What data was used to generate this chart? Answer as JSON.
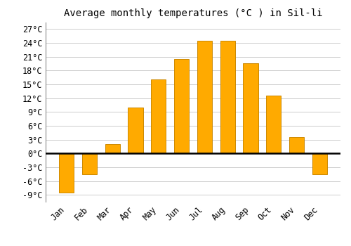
{
  "title": "Average monthly temperatures (°C ) in Sil-li",
  "months": [
    "Jan",
    "Feb",
    "Mar",
    "Apr",
    "May",
    "Jun",
    "Jul",
    "Aug",
    "Sep",
    "Oct",
    "Nov",
    "Dec"
  ],
  "temperatures": [
    -8.5,
    -4.5,
    2.0,
    10.0,
    16.0,
    20.5,
    24.5,
    24.5,
    19.5,
    12.5,
    3.5,
    -4.5
  ],
  "bar_color": "#FFAA00",
  "bar_edge_color": "#CC8800",
  "background_color": "#FFFFFF",
  "grid_color": "#CCCCCC",
  "yticks": [
    -9,
    -6,
    -3,
    0,
    3,
    6,
    9,
    12,
    15,
    18,
    21,
    24,
    27
  ],
  "ytick_labels": [
    "-9°C",
    "-6°C",
    "-3°C",
    "0°C",
    "3°C",
    "6°C",
    "9°C",
    "12°C",
    "15°C",
    "18°C",
    "21°C",
    "24°C",
    "27°C"
  ],
  "ylim": [
    -10.5,
    28.5
  ],
  "title_fontsize": 10,
  "tick_fontsize": 8.5,
  "bar_width": 0.65
}
